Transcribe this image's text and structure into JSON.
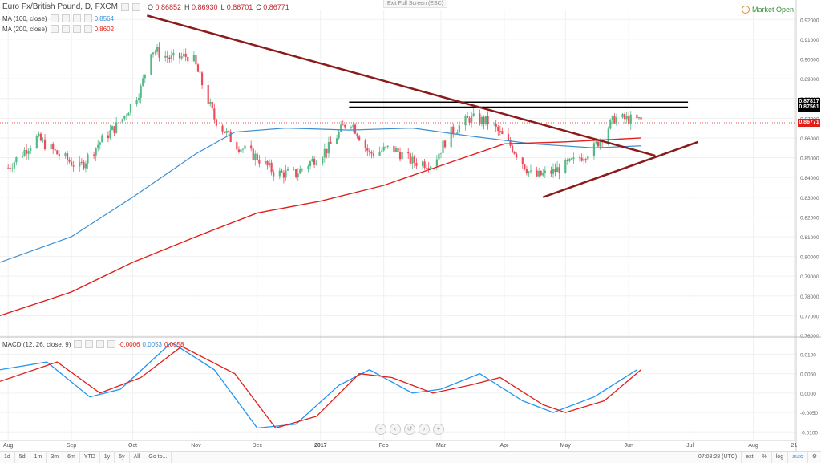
{
  "header": {
    "symbol": "Euro Fx/British Pound, D, FXCM",
    "ohlc": [
      {
        "k": "O",
        "v": "0.86852"
      },
      {
        "k": "H",
        "v": "0.86930"
      },
      {
        "k": "L",
        "v": "0.86701"
      },
      {
        "k": "C",
        "v": "0.86771"
      }
    ],
    "exit_full_screen": "Exit Full Screen (ESC)",
    "market_status": "Market Open"
  },
  "indicators": {
    "ma100": {
      "label": "MA (100, close)",
      "value": "0.8564",
      "color": "#3d8fd1"
    },
    "ma200": {
      "label": "MA (200, close)",
      "value": "0.8602",
      "color": "#e0201b"
    },
    "macd": {
      "label": "MACD (12, 26, close, 9)",
      "v1": "-0.0006",
      "v2": "0.0053",
      "v3": "0.0058"
    }
  },
  "price_axis": [
    "0.92000",
    "0.91000",
    "0.90000",
    "0.89000",
    "0.88000",
    "0.87000",
    "0.86000",
    "0.85000",
    "0.84000",
    "0.83000",
    "0.82000",
    "0.81000",
    "0.80000",
    "0.79000",
    "0.78000",
    "0.77000",
    "0.76000"
  ],
  "price_tags": [
    {
      "value": "0.87817",
      "color": "#000000"
    },
    {
      "value": "0.87561",
      "color": "#000000"
    },
    {
      "value": "0.86771",
      "color": "#e0201b"
    }
  ],
  "macd_axis": [
    "0.0100",
    "0.0050",
    "0.0000",
    "-0.0050",
    "-0.0100"
  ],
  "time_axis": [
    "Aug",
    "Sep",
    "Oct",
    "Nov",
    "Dec",
    "2017",
    "Feb",
    "Mar",
    "Apr",
    "May",
    "Jun",
    "Jul",
    "Aug",
    "21"
  ],
  "toolbar": {
    "timeframes": [
      "1d",
      "5d",
      "1m",
      "3m",
      "6m",
      "YTD",
      "1y",
      "5y",
      "All",
      "Go to..."
    ],
    "time": "07:08:28 (UTC)",
    "options": [
      "ext",
      "%",
      "log",
      "auto"
    ]
  },
  "colors": {
    "candle_up": "#53b987",
    "candle_down": "#eb4d5c",
    "trendline": "#8b1a1a",
    "resistance": "#000000",
    "grid": "#f0f0f0"
  },
  "chart_data": {
    "type": "candlestick",
    "ylim": [
      0.76,
      0.925
    ],
    "macd_ylim": [
      -0.012,
      0.014
    ],
    "price_path": [
      [
        "2016-08-01",
        0.845
      ],
      [
        "2016-08-15",
        0.86
      ],
      [
        "2016-08-25",
        0.852
      ],
      [
        "2016-09-05",
        0.845
      ],
      [
        "2016-09-15",
        0.858
      ],
      [
        "2016-09-25",
        0.868
      ],
      [
        "2016-10-05",
        0.885
      ],
      [
        "2016-10-10",
        0.905
      ],
      [
        "2016-10-20",
        0.9
      ],
      [
        "2016-10-30",
        0.902
      ],
      [
        "2016-11-10",
        0.87
      ],
      [
        "2016-11-20",
        0.857
      ],
      [
        "2016-12-01",
        0.85
      ],
      [
        "2016-12-10",
        0.842
      ],
      [
        "2016-12-20",
        0.842
      ],
      [
        "2017-01-05",
        0.855
      ],
      [
        "2017-01-15",
        0.87
      ],
      [
        "2017-01-25",
        0.852
      ],
      [
        "2017-02-05",
        0.855
      ],
      [
        "2017-02-15",
        0.848
      ],
      [
        "2017-02-25",
        0.847
      ],
      [
        "2017-03-05",
        0.862
      ],
      [
        "2017-03-15",
        0.87
      ],
      [
        "2017-03-25",
        0.868
      ],
      [
        "2017-04-05",
        0.855
      ],
      [
        "2017-04-15",
        0.84
      ],
      [
        "2017-04-25",
        0.843
      ],
      [
        "2017-05-05",
        0.848
      ],
      [
        "2017-05-15",
        0.855
      ],
      [
        "2017-05-25",
        0.87
      ],
      [
        "2017-06-05",
        0.869
      ]
    ],
    "ma100_path": [
      [
        "2016-07-28",
        0.797
      ],
      [
        "2016-09-01",
        0.81
      ],
      [
        "2016-10-01",
        0.83
      ],
      [
        "2016-11-01",
        0.852
      ],
      [
        "2016-11-20",
        0.863
      ],
      [
        "2016-12-15",
        0.865
      ],
      [
        "2017-01-15",
        0.864
      ],
      [
        "2017-02-15",
        0.865
      ],
      [
        "2017-03-15",
        0.861
      ],
      [
        "2017-04-15",
        0.857
      ],
      [
        "2017-05-15",
        0.855
      ],
      [
        "2017-06-07",
        0.856
      ]
    ],
    "ma200_path": [
      [
        "2016-07-28",
        0.77
      ],
      [
        "2016-09-01",
        0.782
      ],
      [
        "2016-10-01",
        0.797
      ],
      [
        "2016-11-01",
        0.81
      ],
      [
        "2016-12-01",
        0.822
      ],
      [
        "2017-01-01",
        0.828
      ],
      [
        "2017-02-01",
        0.836
      ],
      [
        "2017-03-01",
        0.846
      ],
      [
        "2017-04-01",
        0.857
      ],
      [
        "2017-05-01",
        0.858
      ],
      [
        "2017-06-07",
        0.86
      ]
    ],
    "lines": [
      {
        "name": "resistance-1",
        "from": [
          "2017-01-15",
          0.87817
        ],
        "to": [
          "2017-06-30",
          0.87817
        ],
        "color": "#000000"
      },
      {
        "name": "resistance-2",
        "from": [
          "2017-01-15",
          0.87561
        ],
        "to": [
          "2017-06-30",
          0.87561
        ],
        "color": "#000000"
      },
      {
        "name": "descending-trendline",
        "from": [
          "2016-10-08",
          0.922
        ],
        "to": [
          "2017-06-14",
          0.851
        ],
        "color": "#8b1a1a"
      },
      {
        "name": "ascending-trendline",
        "from": [
          "2017-04-20",
          0.83
        ],
        "to": [
          "2017-07-05",
          0.858
        ],
        "color": "#8b1a1a"
      }
    ],
    "macd_line": [
      [
        "2016-07-28",
        0.006
      ],
      [
        "2016-08-20",
        0.008
      ],
      [
        "2016-09-10",
        -0.001
      ],
      [
        "2016-09-25",
        0.001
      ],
      [
        "2016-10-20",
        0.013
      ],
      [
        "2016-11-10",
        0.006
      ],
      [
        "2016-12-01",
        -0.009
      ],
      [
        "2016-12-20",
        -0.008
      ],
      [
        "2017-01-10",
        0.002
      ],
      [
        "2017-01-25",
        0.006
      ],
      [
        "2017-02-15",
        0.0
      ],
      [
        "2017-03-01",
        0.001
      ],
      [
        "2017-03-20",
        0.005
      ],
      [
        "2017-04-10",
        -0.002
      ],
      [
        "2017-04-25",
        -0.005
      ],
      [
        "2017-05-15",
        -0.001
      ],
      [
        "2017-06-05",
        0.006
      ]
    ],
    "signal_line": [
      [
        "2016-07-28",
        0.003
      ],
      [
        "2016-08-25",
        0.008
      ],
      [
        "2016-09-15",
        0.0
      ],
      [
        "2016-10-05",
        0.004
      ],
      [
        "2016-10-25",
        0.012
      ],
      [
        "2016-11-20",
        0.005
      ],
      [
        "2016-12-10",
        -0.009
      ],
      [
        "2016-12-30",
        -0.006
      ],
      [
        "2017-01-20",
        0.005
      ],
      [
        "2017-02-05",
        0.004
      ],
      [
        "2017-02-25",
        0.0
      ],
      [
        "2017-03-15",
        0.002
      ],
      [
        "2017-03-30",
        0.004
      ],
      [
        "2017-04-20",
        -0.003
      ],
      [
        "2017-05-01",
        -0.005
      ],
      [
        "2017-05-20",
        -0.002
      ],
      [
        "2017-06-07",
        0.006
      ]
    ]
  }
}
